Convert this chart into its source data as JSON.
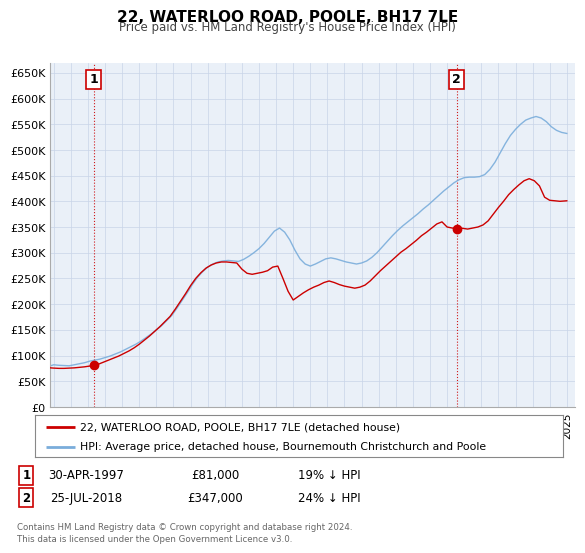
{
  "title": "22, WATERLOO ROAD, POOLE, BH17 7LE",
  "subtitle": "Price paid vs. HM Land Registry's House Price Index (HPI)",
  "xlim": [
    1994.8,
    2025.5
  ],
  "ylim": [
    0,
    670000
  ],
  "yticks": [
    0,
    50000,
    100000,
    150000,
    200000,
    250000,
    300000,
    350000,
    400000,
    450000,
    500000,
    550000,
    600000,
    650000
  ],
  "ytick_labels": [
    "£0",
    "£50K",
    "£100K",
    "£150K",
    "£200K",
    "£250K",
    "£300K",
    "£350K",
    "£400K",
    "£450K",
    "£500K",
    "£550K",
    "£600K",
    "£650K"
  ],
  "xticks": [
    1995,
    1996,
    1997,
    1998,
    1999,
    2000,
    2001,
    2002,
    2003,
    2004,
    2005,
    2006,
    2007,
    2008,
    2009,
    2010,
    2011,
    2012,
    2013,
    2014,
    2015,
    2016,
    2017,
    2018,
    2019,
    2020,
    2021,
    2022,
    2023,
    2024,
    2025
  ],
  "sale1_x": 1997.33,
  "sale1_y": 81000,
  "sale1_label": "1",
  "sale1_date": "30-APR-1997",
  "sale1_price": "£81,000",
  "sale1_hpi": "19% ↓ HPI",
  "sale2_x": 2018.56,
  "sale2_y": 347000,
  "sale2_label": "2",
  "sale2_date": "25-JUL-2018",
  "sale2_price": "£347,000",
  "sale2_hpi": "24% ↓ HPI",
  "red_color": "#cc0000",
  "blue_color": "#7aaddb",
  "background_color": "#eaf0f8",
  "grid_color": "#c8d4e8",
  "legend_label_red": "22, WATERLOO ROAD, POOLE, BH17 7LE (detached house)",
  "legend_label_blue": "HPI: Average price, detached house, Bournemouth Christchurch and Poole",
  "footer1": "Contains HM Land Registry data © Crown copyright and database right 2024.",
  "footer2": "This data is licensed under the Open Government Licence v3.0.",
  "hpi_x": [
    1994.8,
    1995.0,
    1995.3,
    1995.6,
    1995.9,
    1996.2,
    1996.5,
    1996.8,
    1997.1,
    1997.4,
    1997.7,
    1998.0,
    1998.3,
    1998.6,
    1998.9,
    1999.2,
    1999.5,
    1999.8,
    2000.1,
    2000.4,
    2000.7,
    2001.0,
    2001.3,
    2001.6,
    2001.9,
    2002.2,
    2002.5,
    2002.8,
    2003.1,
    2003.4,
    2003.7,
    2004.0,
    2004.3,
    2004.6,
    2004.9,
    2005.2,
    2005.5,
    2005.8,
    2006.1,
    2006.4,
    2006.7,
    2007.0,
    2007.3,
    2007.6,
    2007.9,
    2008.2,
    2008.5,
    2008.8,
    2009.1,
    2009.4,
    2009.7,
    2010.0,
    2010.3,
    2010.6,
    2010.9,
    2011.2,
    2011.5,
    2011.8,
    2012.1,
    2012.4,
    2012.7,
    2013.0,
    2013.3,
    2013.6,
    2013.9,
    2014.2,
    2014.5,
    2014.8,
    2015.1,
    2015.4,
    2015.7,
    2016.0,
    2016.3,
    2016.6,
    2016.9,
    2017.2,
    2017.5,
    2017.8,
    2018.1,
    2018.4,
    2018.7,
    2019.0,
    2019.3,
    2019.6,
    2019.9,
    2020.2,
    2020.5,
    2020.8,
    2021.1,
    2021.4,
    2021.7,
    2022.0,
    2022.3,
    2022.6,
    2022.9,
    2023.2,
    2023.5,
    2023.8,
    2024.1,
    2024.4,
    2024.7,
    2025.0
  ],
  "hpi_y": [
    80000,
    82000,
    81000,
    80500,
    80000,
    82000,
    84000,
    86000,
    89000,
    91000,
    93000,
    96000,
    99000,
    103000,
    107000,
    112000,
    117000,
    122000,
    128000,
    135000,
    142000,
    150000,
    158000,
    168000,
    178000,
    192000,
    207000,
    222000,
    238000,
    252000,
    263000,
    272000,
    278000,
    282000,
    284000,
    285000,
    284000,
    283000,
    287000,
    293000,
    300000,
    308000,
    318000,
    330000,
    342000,
    348000,
    340000,
    325000,
    305000,
    288000,
    278000,
    274000,
    278000,
    283000,
    288000,
    290000,
    288000,
    285000,
    282000,
    280000,
    278000,
    280000,
    284000,
    291000,
    300000,
    311000,
    322000,
    333000,
    343000,
    352000,
    360000,
    368000,
    376000,
    385000,
    393000,
    402000,
    411000,
    420000,
    428000,
    436000,
    442000,
    446000,
    447000,
    447000,
    448000,
    452000,
    462000,
    476000,
    494000,
    512000,
    528000,
    540000,
    550000,
    558000,
    562000,
    565000,
    562000,
    555000,
    545000,
    538000,
    534000,
    532000
  ],
  "red_x": [
    1994.8,
    1995.0,
    1995.3,
    1995.6,
    1995.9,
    1996.2,
    1996.5,
    1996.8,
    1997.1,
    1997.33,
    1997.6,
    1997.9,
    1998.2,
    1998.5,
    1998.8,
    1999.1,
    1999.4,
    1999.7,
    2000.0,
    2000.3,
    2000.6,
    2000.9,
    2001.2,
    2001.5,
    2001.8,
    2002.1,
    2002.4,
    2002.7,
    2003.0,
    2003.3,
    2003.6,
    2003.9,
    2004.2,
    2004.5,
    2004.8,
    2005.1,
    2005.4,
    2005.7,
    2006.0,
    2006.3,
    2006.6,
    2006.9,
    2007.2,
    2007.5,
    2007.8,
    2008.1,
    2008.4,
    2008.7,
    2009.0,
    2009.3,
    2009.6,
    2009.9,
    2010.2,
    2010.5,
    2010.8,
    2011.1,
    2011.4,
    2011.7,
    2012.0,
    2012.3,
    2012.6,
    2012.9,
    2013.2,
    2013.5,
    2013.8,
    2014.1,
    2014.4,
    2014.7,
    2015.0,
    2015.3,
    2015.6,
    2015.9,
    2016.2,
    2016.5,
    2016.8,
    2017.1,
    2017.4,
    2017.7,
    2018.0,
    2018.3,
    2018.56,
    2018.9,
    2019.2,
    2019.5,
    2019.8,
    2020.1,
    2020.4,
    2020.7,
    2021.0,
    2021.3,
    2021.6,
    2021.9,
    2022.2,
    2022.5,
    2022.8,
    2023.1,
    2023.4,
    2023.7,
    2024.0,
    2024.3,
    2024.6,
    2025.0
  ],
  "red_y": [
    76000,
    75500,
    75000,
    75000,
    75500,
    76000,
    77000,
    78000,
    79500,
    81000,
    83000,
    87000,
    91000,
    95000,
    99000,
    104000,
    109000,
    115000,
    122000,
    130000,
    138000,
    147000,
    156000,
    166000,
    176000,
    190000,
    205000,
    220000,
    236000,
    250000,
    261000,
    270000,
    276000,
    280000,
    282000,
    282000,
    281000,
    280000,
    268000,
    260000,
    258000,
    260000,
    262000,
    265000,
    272000,
    274000,
    250000,
    225000,
    208000,
    215000,
    222000,
    228000,
    233000,
    237000,
    242000,
    245000,
    242000,
    238000,
    235000,
    233000,
    231000,
    233000,
    237000,
    245000,
    255000,
    265000,
    274000,
    283000,
    292000,
    301000,
    308000,
    316000,
    324000,
    333000,
    340000,
    348000,
    356000,
    360000,
    350000,
    348000,
    347000,
    347500,
    346000,
    348000,
    350000,
    354000,
    362000,
    375000,
    388000,
    400000,
    413000,
    423000,
    432000,
    440000,
    444000,
    440000,
    430000,
    408000,
    402000,
    401000,
    400000,
    401000
  ]
}
